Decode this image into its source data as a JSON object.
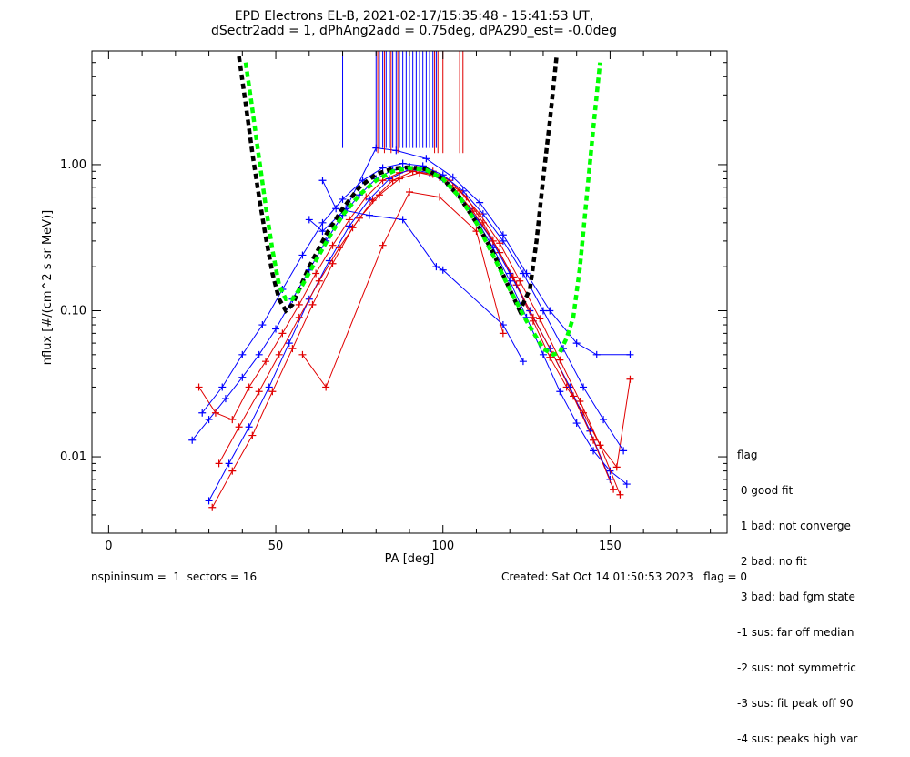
{
  "chart_data": {
    "type": "line",
    "title": "EPD Electrons EL-B, 2021-02-17/15:35:48 - 15:41:53 UT,",
    "subtitle": "dSectr2add = 1, dPhAng2add = 0.75deg, dPA290_est=  -0.0deg",
    "xlabel": "PA [deg]",
    "ylabel": "nflux [#/(cm^2 s sr MeV)]",
    "xlim": [
      -5,
      185
    ],
    "ylim": [
      0.003,
      6.0
    ],
    "yscale": "log",
    "xticks": [
      0,
      50,
      100,
      150
    ],
    "xtick_labels": [
      "0",
      "50",
      "100",
      "150"
    ],
    "yticks": [
      0.01,
      0.1,
      1.0
    ],
    "ytick_labels": [
      "0.01",
      "0.10",
      "1.00"
    ],
    "grid": false,
    "colors": {
      "blue": "#0000ff",
      "red": "#e00000",
      "black": "#000000",
      "green": "#00ff00"
    },
    "series": [
      {
        "color": "blue",
        "style": "line+cross",
        "x": [
          25,
          30,
          35,
          40,
          45,
          50,
          55,
          60,
          65,
          70,
          75,
          80,
          85,
          90,
          95,
          100,
          105,
          110,
          115,
          120,
          125,
          130,
          135,
          140,
          145,
          150,
          155
        ],
        "y": [
          0.013,
          0.018,
          0.025,
          0.035,
          0.05,
          0.075,
          0.12,
          0.19,
          0.3,
          0.45,
          0.62,
          0.8,
          0.92,
          0.97,
          0.93,
          0.8,
          0.6,
          0.42,
          0.27,
          0.16,
          0.09,
          0.05,
          0.028,
          0.017,
          0.011,
          0.008,
          0.0065
        ]
      },
      {
        "color": "red",
        "style": "line+cross",
        "x": [
          27,
          32,
          37,
          42,
          47,
          52,
          57,
          62,
          67,
          72,
          77,
          82,
          87,
          92,
          97,
          102,
          107,
          112,
          117,
          122,
          127,
          132,
          137,
          142,
          147,
          152,
          156
        ],
        "y": [
          0.03,
          0.02,
          0.018,
          0.03,
          0.045,
          0.07,
          0.11,
          0.18,
          0.28,
          0.42,
          0.6,
          0.78,
          0.88,
          0.93,
          0.9,
          0.78,
          0.6,
          0.4,
          0.25,
          0.15,
          0.085,
          0.048,
          0.03,
          0.02,
          0.012,
          0.0085,
          0.034
        ]
      },
      {
        "color": "blue",
        "style": "line+cross",
        "x": [
          30,
          36,
          42,
          48,
          54,
          60,
          66,
          72,
          78,
          84,
          90,
          96,
          102,
          108,
          114,
          120,
          126,
          132,
          138,
          144,
          150
        ],
        "y": [
          0.005,
          0.009,
          0.016,
          0.03,
          0.06,
          0.12,
          0.22,
          0.38,
          0.58,
          0.8,
          0.93,
          0.88,
          0.72,
          0.5,
          0.32,
          0.18,
          0.1,
          0.055,
          0.03,
          0.015,
          0.007
        ]
      },
      {
        "color": "red",
        "style": "line+cross",
        "x": [
          31,
          37,
          43,
          49,
          55,
          61,
          67,
          73,
          79,
          85,
          91,
          97,
          103,
          109,
          115,
          121,
          127,
          133,
          139,
          145,
          151
        ],
        "y": [
          0.0045,
          0.008,
          0.014,
          0.028,
          0.055,
          0.11,
          0.21,
          0.37,
          0.57,
          0.78,
          0.9,
          0.86,
          0.7,
          0.48,
          0.3,
          0.17,
          0.09,
          0.05,
          0.026,
          0.013,
          0.006
        ]
      },
      {
        "color": "blue",
        "style": "line+cross",
        "x": [
          28,
          34,
          40,
          46,
          52,
          58,
          64,
          70,
          76,
          82,
          88,
          94,
          100,
          106,
          112,
          118,
          124,
          130,
          136,
          142,
          148,
          154
        ],
        "y": [
          0.02,
          0.03,
          0.05,
          0.08,
          0.14,
          0.24,
          0.4,
          0.58,
          0.78,
          0.95,
          1.02,
          0.98,
          0.85,
          0.66,
          0.46,
          0.3,
          0.18,
          0.1,
          0.055,
          0.03,
          0.018,
          0.011
        ]
      },
      {
        "color": "red",
        "style": "line+cross",
        "x": [
          33,
          39,
          45,
          51,
          57,
          63,
          69,
          75,
          81,
          87,
          93,
          99,
          105,
          111,
          117,
          123,
          129,
          135,
          141,
          147,
          153
        ],
        "y": [
          0.009,
          0.016,
          0.028,
          0.05,
          0.09,
          0.16,
          0.27,
          0.43,
          0.62,
          0.8,
          0.88,
          0.82,
          0.66,
          0.46,
          0.29,
          0.16,
          0.088,
          0.046,
          0.024,
          0.012,
          0.0055
        ]
      },
      {
        "color": "blue",
        "style": "line+cross",
        "x": [
          64,
          68,
          78,
          88,
          98,
          100,
          118,
          124
        ],
        "y": [
          0.78,
          0.5,
          0.45,
          0.42,
          0.2,
          0.19,
          0.08,
          0.045
        ]
      },
      {
        "color": "red",
        "style": "line+cross",
        "x": [
          58,
          65,
          82,
          90,
          99,
          110,
          118
        ],
        "y": [
          0.05,
          0.03,
          0.28,
          0.65,
          0.6,
          0.35,
          0.07
        ]
      },
      {
        "color": "blue",
        "style": "line+cross",
        "x": [
          60,
          64,
          71,
          80,
          86,
          95,
          103,
          111,
          118,
          125,
          132,
          140,
          146,
          156
        ],
        "y": [
          0.42,
          0.35,
          0.5,
          1.3,
          1.25,
          1.1,
          0.82,
          0.55,
          0.33,
          0.18,
          0.1,
          0.06,
          0.05,
          0.05
        ]
      },
      {
        "color": "blue",
        "style": "vlines",
        "x": [
          70,
          80,
          81,
          82,
          83,
          84,
          85,
          86,
          87,
          88,
          89,
          90,
          91,
          92,
          93,
          94,
          95,
          96,
          97,
          98
        ],
        "y_low": 1.3,
        "y_high": 6.0
      },
      {
        "color": "red",
        "style": "vlines",
        "x": [
          80.5,
          82.5,
          84.5,
          86.5,
          97.5,
          98.5,
          100,
          105,
          106
        ],
        "y_low": 1.2,
        "y_high": 6.0
      },
      {
        "color": "black",
        "style": "dashed",
        "x": [
          39,
          41,
          43,
          45,
          47,
          49,
          51,
          53,
          55,
          57,
          60,
          65,
          70,
          75,
          80,
          85,
          90,
          95,
          100,
          105,
          110,
          115,
          120,
          123,
          126,
          128,
          130,
          132,
          134
        ],
        "y": [
          5.5,
          2.6,
          1.2,
          0.6,
          0.32,
          0.18,
          0.12,
          0.1,
          0.11,
          0.14,
          0.2,
          0.33,
          0.5,
          0.7,
          0.86,
          0.94,
          0.96,
          0.93,
          0.8,
          0.6,
          0.4,
          0.25,
          0.14,
          0.1,
          0.14,
          0.3,
          0.8,
          2.0,
          5.5
        ]
      },
      {
        "color": "green",
        "style": "dashed",
        "x": [
          41,
          43,
          45,
          47,
          49,
          51,
          53,
          55,
          58,
          62,
          66,
          70,
          75,
          80,
          85,
          90,
          95,
          100,
          105,
          110,
          115,
          120,
          125,
          130,
          133,
          135,
          137,
          139,
          141,
          143,
          145,
          147
        ],
        "y": [
          5.0,
          2.4,
          1.1,
          0.52,
          0.26,
          0.15,
          0.12,
          0.12,
          0.15,
          0.22,
          0.32,
          0.45,
          0.62,
          0.78,
          0.9,
          0.95,
          0.92,
          0.8,
          0.6,
          0.4,
          0.24,
          0.14,
          0.085,
          0.055,
          0.05,
          0.052,
          0.065,
          0.09,
          0.2,
          0.6,
          1.8,
          5.0
        ]
      }
    ]
  },
  "legend": {
    "title": "flag",
    "items": [
      " 0 good fit",
      " 1 bad: not converge",
      " 2 bad: no fit",
      " 3 bad: bad fgm state",
      "-1 sus: far off median",
      "-2 sus: not symmetric",
      "-3 sus: fit peak off 90",
      "-4 sus: peaks high var"
    ]
  },
  "footer": {
    "left": "nspininsum =  1  sectors = 16",
    "right": "Created: Sat Oct 14 01:50:53 2023   flag = 0"
  }
}
